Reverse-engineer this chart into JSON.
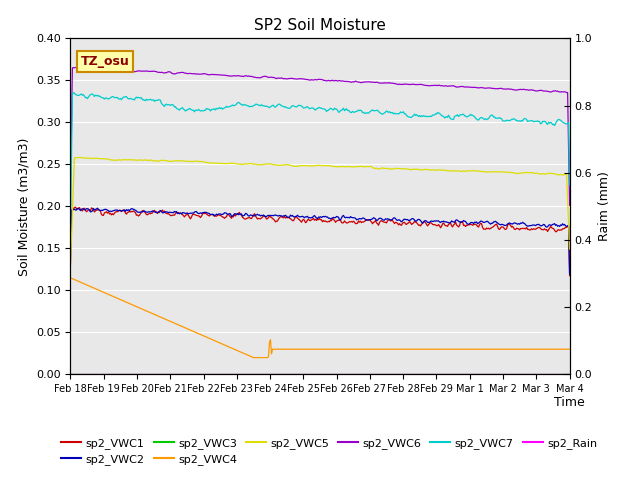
{
  "title": "SP2 Soil Moisture",
  "xlabel": "Time",
  "ylabel_left": "Soil Moisture (m3/m3)",
  "ylabel_right": "Raim (mm)",
  "annotation_text": "TZ_osu",
  "date_labels": [
    "Feb 18",
    "Feb 19",
    "Feb 20",
    "Feb 21",
    "Feb 22",
    "Feb 23",
    "Feb 24",
    "Feb 25",
    "Feb 26",
    "Feb 27",
    "Feb 28",
    "Feb 29",
    "Mar 1",
    "Mar 2",
    "Mar 3",
    "Mar 4"
  ],
  "ylim_left": [
    0.0,
    0.4
  ],
  "ylim_right": [
    0.0,
    1.0
  ],
  "yticks_left": [
    0.0,
    0.05,
    0.1,
    0.15,
    0.2,
    0.25,
    0.3,
    0.35,
    0.4
  ],
  "yticks_right": [
    0.0,
    0.2,
    0.4,
    0.6,
    0.8,
    1.0
  ],
  "background_color": "#e8e8e8",
  "grid_color": "#ffffff",
  "colors": {
    "sp2_VWC1": "#cc0000",
    "sp2_VWC2": "#0000bb",
    "sp2_VWC3": "#00cc00",
    "sp2_VWC4": "#ff9900",
    "sp2_VWC5": "#dddd00",
    "sp2_VWC6": "#9900cc",
    "sp2_VWC7": "#00cccc",
    "sp2_Rain": "#ff00ff"
  },
  "legend_labels": [
    "sp2_VWC1",
    "sp2_VWC2",
    "sp2_VWC3",
    "sp2_VWC4",
    "sp2_VWC5",
    "sp2_VWC6",
    "sp2_VWC7",
    "sp2_Rain"
  ]
}
